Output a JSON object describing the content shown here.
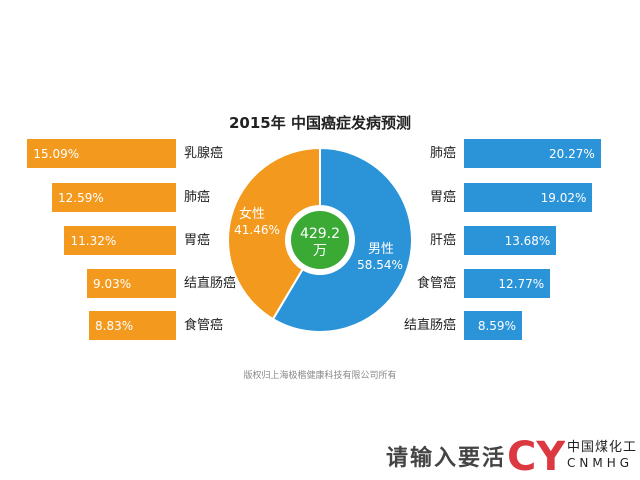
{
  "chart_data": {
    "type": "bar",
    "title": "2015年 中国癌症发病预测",
    "female": {
      "categories": [
        "乳腺癌",
        "肺癌",
        "胃癌",
        "结直肠癌",
        "食管癌"
      ],
      "values": [
        15.09,
        12.59,
        11.32,
        9.03,
        8.83
      ],
      "labels": [
        "15.09%",
        "12.59%",
        "11.32%",
        "9.03%",
        "8.83%"
      ],
      "color": "#f39a1e"
    },
    "male": {
      "categories": [
        "肺癌",
        "胃癌",
        "肝癌",
        "食管癌",
        "结直肠癌"
      ],
      "values": [
        20.27,
        19.02,
        13.68,
        12.77,
        8.59
      ],
      "labels": [
        "20.27%",
        "19.02%",
        "13.68%",
        "12.77%",
        "8.59%"
      ],
      "color": "#2b94d9"
    },
    "donut": {
      "type": "pie",
      "slices": [
        {
          "name": "女性",
          "value": 41.46,
          "label": "41.46%",
          "color": "#f39a1e"
        },
        {
          "name": "男性",
          "value": 58.54,
          "label": "58.54%",
          "color": "#2b94d9"
        }
      ],
      "center_value": "429.2",
      "center_unit": "万",
      "center_color": "#3aaa35"
    }
  },
  "footer": {
    "copyright": "版权归上海极楷健康科技有限公司所有"
  },
  "watermark": {
    "text": "请输入要活",
    "logo_letters": "CYH",
    "brand_cn": "中国煤化工",
    "brand_en": "CNMHG",
    "logo_color": "#d9232d"
  }
}
